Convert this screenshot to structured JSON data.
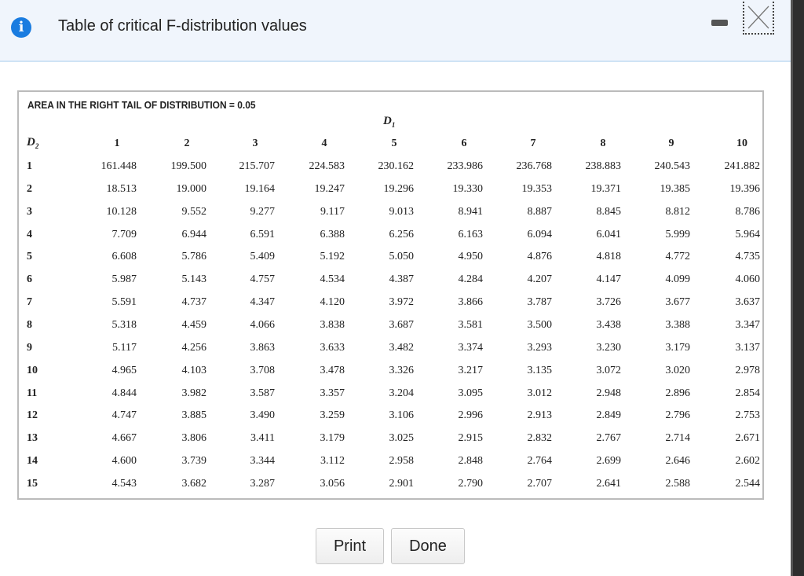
{
  "dialog": {
    "title": "Table of critical F-distribution values",
    "icons": {
      "info": "info-icon",
      "minimize": "minimize-icon",
      "close": "close-icon"
    },
    "accent": "#1a7ce0"
  },
  "table": {
    "caption": "AREA IN THE RIGHT TAIL OF DISTRIBUTION = 0.05",
    "col_axis_label": "D",
    "col_axis_sub": "1",
    "row_axis_label": "D",
    "row_axis_sub": "2",
    "columns": [
      "1",
      "2",
      "3",
      "4",
      "5",
      "6",
      "7",
      "8",
      "9",
      "10"
    ],
    "rows": [
      {
        "d2": "1",
        "values": [
          "161.448",
          "199.500",
          "215.707",
          "224.583",
          "230.162",
          "233.986",
          "236.768",
          "238.883",
          "240.543",
          "241.882"
        ]
      },
      {
        "d2": "2",
        "values": [
          "18.513",
          "19.000",
          "19.164",
          "19.247",
          "19.296",
          "19.330",
          "19.353",
          "19.371",
          "19.385",
          "19.396"
        ]
      },
      {
        "d2": "3",
        "values": [
          "10.128",
          "9.552",
          "9.277",
          "9.117",
          "9.013",
          "8.941",
          "8.887",
          "8.845",
          "8.812",
          "8.786"
        ]
      },
      {
        "d2": "4",
        "values": [
          "7.709",
          "6.944",
          "6.591",
          "6.388",
          "6.256",
          "6.163",
          "6.094",
          "6.041",
          "5.999",
          "5.964"
        ]
      },
      {
        "d2": "5",
        "values": [
          "6.608",
          "5.786",
          "5.409",
          "5.192",
          "5.050",
          "4.950",
          "4.876",
          "4.818",
          "4.772",
          "4.735"
        ]
      },
      {
        "d2": "6",
        "values": [
          "5.987",
          "5.143",
          "4.757",
          "4.534",
          "4.387",
          "4.284",
          "4.207",
          "4.147",
          "4.099",
          "4.060"
        ]
      },
      {
        "d2": "7",
        "values": [
          "5.591",
          "4.737",
          "4.347",
          "4.120",
          "3.972",
          "3.866",
          "3.787",
          "3.726",
          "3.677",
          "3.637"
        ]
      },
      {
        "d2": "8",
        "values": [
          "5.318",
          "4.459",
          "4.066",
          "3.838",
          "3.687",
          "3.581",
          "3.500",
          "3.438",
          "3.388",
          "3.347"
        ]
      },
      {
        "d2": "9",
        "values": [
          "5.117",
          "4.256",
          "3.863",
          "3.633",
          "3.482",
          "3.374",
          "3.293",
          "3.230",
          "3.179",
          "3.137"
        ]
      },
      {
        "d2": "10",
        "values": [
          "4.965",
          "4.103",
          "3.708",
          "3.478",
          "3.326",
          "3.217",
          "3.135",
          "3.072",
          "3.020",
          "2.978"
        ]
      },
      {
        "d2": "11",
        "values": [
          "4.844",
          "3.982",
          "3.587",
          "3.357",
          "3.204",
          "3.095",
          "3.012",
          "2.948",
          "2.896",
          "2.854"
        ]
      },
      {
        "d2": "12",
        "values": [
          "4.747",
          "3.885",
          "3.490",
          "3.259",
          "3.106",
          "2.996",
          "2.913",
          "2.849",
          "2.796",
          "2.753"
        ]
      },
      {
        "d2": "13",
        "values": [
          "4.667",
          "3.806",
          "3.411",
          "3.179",
          "3.025",
          "2.915",
          "2.832",
          "2.767",
          "2.714",
          "2.671"
        ]
      },
      {
        "d2": "14",
        "values": [
          "4.600",
          "3.739",
          "3.344",
          "3.112",
          "2.958",
          "2.848",
          "2.764",
          "2.699",
          "2.646",
          "2.602"
        ]
      },
      {
        "d2": "15",
        "values": [
          "4.543",
          "3.682",
          "3.287",
          "3.056",
          "2.901",
          "2.790",
          "2.707",
          "2.641",
          "2.588",
          "2.544"
        ]
      }
    ]
  },
  "buttons": {
    "print": "Print",
    "done": "Done"
  }
}
